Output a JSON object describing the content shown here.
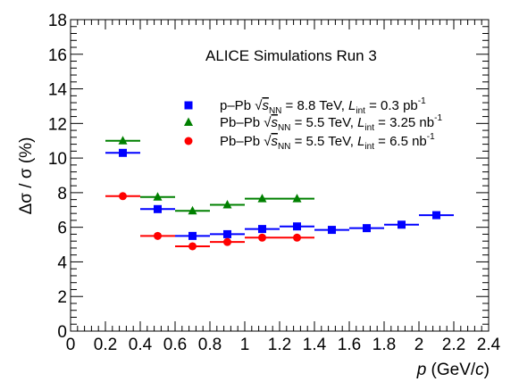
{
  "chart_data": {
    "type": "scatter",
    "header": "ALICE Simulations Run 3",
    "xlabel": {
      "var": "p",
      "rest": " (GeV/",
      "unit": "c",
      "close": ")"
    },
    "ylabel": "Δσ / σ (%)",
    "xlim": [
      0,
      2.4
    ],
    "ylim": [
      0,
      18
    ],
    "x_ticks": [
      "0",
      "0.2",
      "0.4",
      "0.6",
      "0.8",
      "1",
      "1.2",
      "1.4",
      "1.6",
      "1.8",
      "2",
      "2.2",
      "2.4"
    ],
    "y_ticks": [
      "0",
      "2",
      "4",
      "6",
      "8",
      "10",
      "12",
      "14",
      "16",
      "18"
    ],
    "grid": false,
    "legend_position": "upper-center",
    "series": [
      {
        "name": "p–Pb",
        "legend": {
          "system": "p–Pb",
          "sqrt_s_label": "s",
          "sqrt_s_sub": "NN",
          "energy": " = 8.8 TeV, ",
          "lumi_label": "L",
          "lumi_sub": "int",
          "lumi_value": " = 0.3 pb",
          "lumi_exp": "-1"
        },
        "color": "#0000ff",
        "marker": "square",
        "points": [
          {
            "x": 0.3,
            "y": 10.3,
            "xerr": 0.1
          },
          {
            "x": 0.5,
            "y": 7.05,
            "xerr": 0.1
          },
          {
            "x": 0.7,
            "y": 5.5,
            "xerr": 0.1
          },
          {
            "x": 0.9,
            "y": 5.6,
            "xerr": 0.1
          },
          {
            "x": 1.1,
            "y": 5.9,
            "xerr": 0.1
          },
          {
            "x": 1.3,
            "y": 6.05,
            "xerr": 0.1
          },
          {
            "x": 1.5,
            "y": 5.85,
            "xerr": 0.1
          },
          {
            "x": 1.7,
            "y": 5.95,
            "xerr": 0.1
          },
          {
            "x": 1.9,
            "y": 6.15,
            "xerr": 0.1
          },
          {
            "x": 2.1,
            "y": 6.7,
            "xerr": 0.1
          }
        ]
      },
      {
        "name": "Pb–Pb 3.25",
        "legend": {
          "system": "Pb–Pb",
          "sqrt_s_label": "s",
          "sqrt_s_sub": "NN",
          "energy": " = 5.5 TeV, ",
          "lumi_label": "L",
          "lumi_sub": "int",
          "lumi_value": " = 3.25 nb",
          "lumi_exp": "-1"
        },
        "color": "#008000",
        "marker": "triangle",
        "points": [
          {
            "x": 0.3,
            "y": 11.0,
            "xerr": 0.1
          },
          {
            "x": 0.5,
            "y": 7.75,
            "xerr": 0.1
          },
          {
            "x": 0.7,
            "y": 6.95,
            "xerr": 0.1
          },
          {
            "x": 0.9,
            "y": 7.3,
            "xerr": 0.1
          },
          {
            "x": 1.1,
            "y": 7.65,
            "xerr": 0.1
          },
          {
            "x": 1.3,
            "y": 7.65,
            "xerr": 0.1
          }
        ]
      },
      {
        "name": "Pb–Pb 6.5",
        "legend": {
          "system": "Pb–Pb",
          "sqrt_s_label": "s",
          "sqrt_s_sub": "NN",
          "energy": " = 5.5 TeV, ",
          "lumi_label": "L",
          "lumi_sub": "int",
          "lumi_value": " = 6.5 nb",
          "lumi_exp": "-1"
        },
        "color": "#ff0000",
        "marker": "circle",
        "points": [
          {
            "x": 0.3,
            "y": 7.8,
            "xerr": 0.1
          },
          {
            "x": 0.5,
            "y": 5.5,
            "xerr": 0.1
          },
          {
            "x": 0.7,
            "y": 4.9,
            "xerr": 0.1
          },
          {
            "x": 0.9,
            "y": 5.15,
            "xerr": 0.1
          },
          {
            "x": 1.1,
            "y": 5.4,
            "xerr": 0.1
          },
          {
            "x": 1.3,
            "y": 5.4,
            "xerr": 0.1
          }
        ]
      }
    ]
  }
}
